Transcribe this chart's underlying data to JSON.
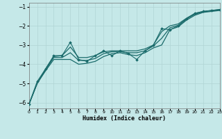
{
  "xlabel": "Humidex (Indice chaleur)",
  "bg_color": "#c5e8e8",
  "line_color": "#1a6b6b",
  "grid_color": "#b0d4d4",
  "x_data": [
    0,
    1,
    2,
    3,
    4,
    5,
    6,
    7,
    8,
    9,
    10,
    11,
    12,
    13,
    14,
    15,
    16,
    17,
    18,
    19,
    20,
    21,
    22,
    23
  ],
  "line1_y": [
    -6.1,
    -5.0,
    -4.25,
    -3.6,
    -3.55,
    -3.1,
    -3.65,
    -3.65,
    -3.55,
    -3.35,
    -3.3,
    -3.3,
    -3.3,
    -3.3,
    -3.2,
    -3.0,
    -2.3,
    -2.0,
    -1.9,
    -1.6,
    -1.35,
    -1.25,
    -1.2,
    -1.15
  ],
  "line2_y": [
    -6.1,
    -5.0,
    -4.35,
    -3.75,
    -3.75,
    -3.75,
    -4.0,
    -3.95,
    -3.85,
    -3.6,
    -3.45,
    -3.4,
    -3.5,
    -3.55,
    -3.4,
    -3.15,
    -3.0,
    -2.2,
    -2.05,
    -1.7,
    -1.45,
    -1.3,
    -1.25,
    -1.2
  ],
  "line3_y": [
    -6.1,
    -5.0,
    -4.3,
    -3.65,
    -3.65,
    -3.4,
    -3.8,
    -3.8,
    -3.7,
    -3.45,
    -3.35,
    -3.35,
    -3.4,
    -3.4,
    -3.3,
    -3.05,
    -2.65,
    -2.1,
    -1.97,
    -1.63,
    -1.4,
    -1.27,
    -1.22,
    -1.17
  ],
  "zigzag_x": [
    0,
    1,
    2,
    3,
    4,
    5,
    6,
    7,
    8,
    9,
    10,
    11,
    12,
    13,
    14,
    15,
    16,
    17,
    18,
    19,
    20,
    21,
    22,
    23
  ],
  "zigzag_y": [
    -6.1,
    -4.9,
    -4.25,
    -3.55,
    -3.55,
    -2.85,
    -3.75,
    -3.85,
    -3.55,
    -3.3,
    -3.55,
    -3.3,
    -3.45,
    -3.75,
    -3.3,
    -3.0,
    -2.15,
    -2.2,
    -2.0,
    -1.65,
    -1.35,
    -1.25,
    -1.2,
    -1.15
  ],
  "xlim": [
    0,
    23
  ],
  "ylim": [
    -6.3,
    -0.8
  ],
  "yticks": [
    -6,
    -5,
    -4,
    -3,
    -2,
    -1
  ],
  "xticks": [
    0,
    1,
    2,
    3,
    4,
    5,
    6,
    7,
    8,
    9,
    10,
    11,
    12,
    13,
    14,
    15,
    16,
    17,
    18,
    19,
    20,
    21,
    22,
    23
  ]
}
